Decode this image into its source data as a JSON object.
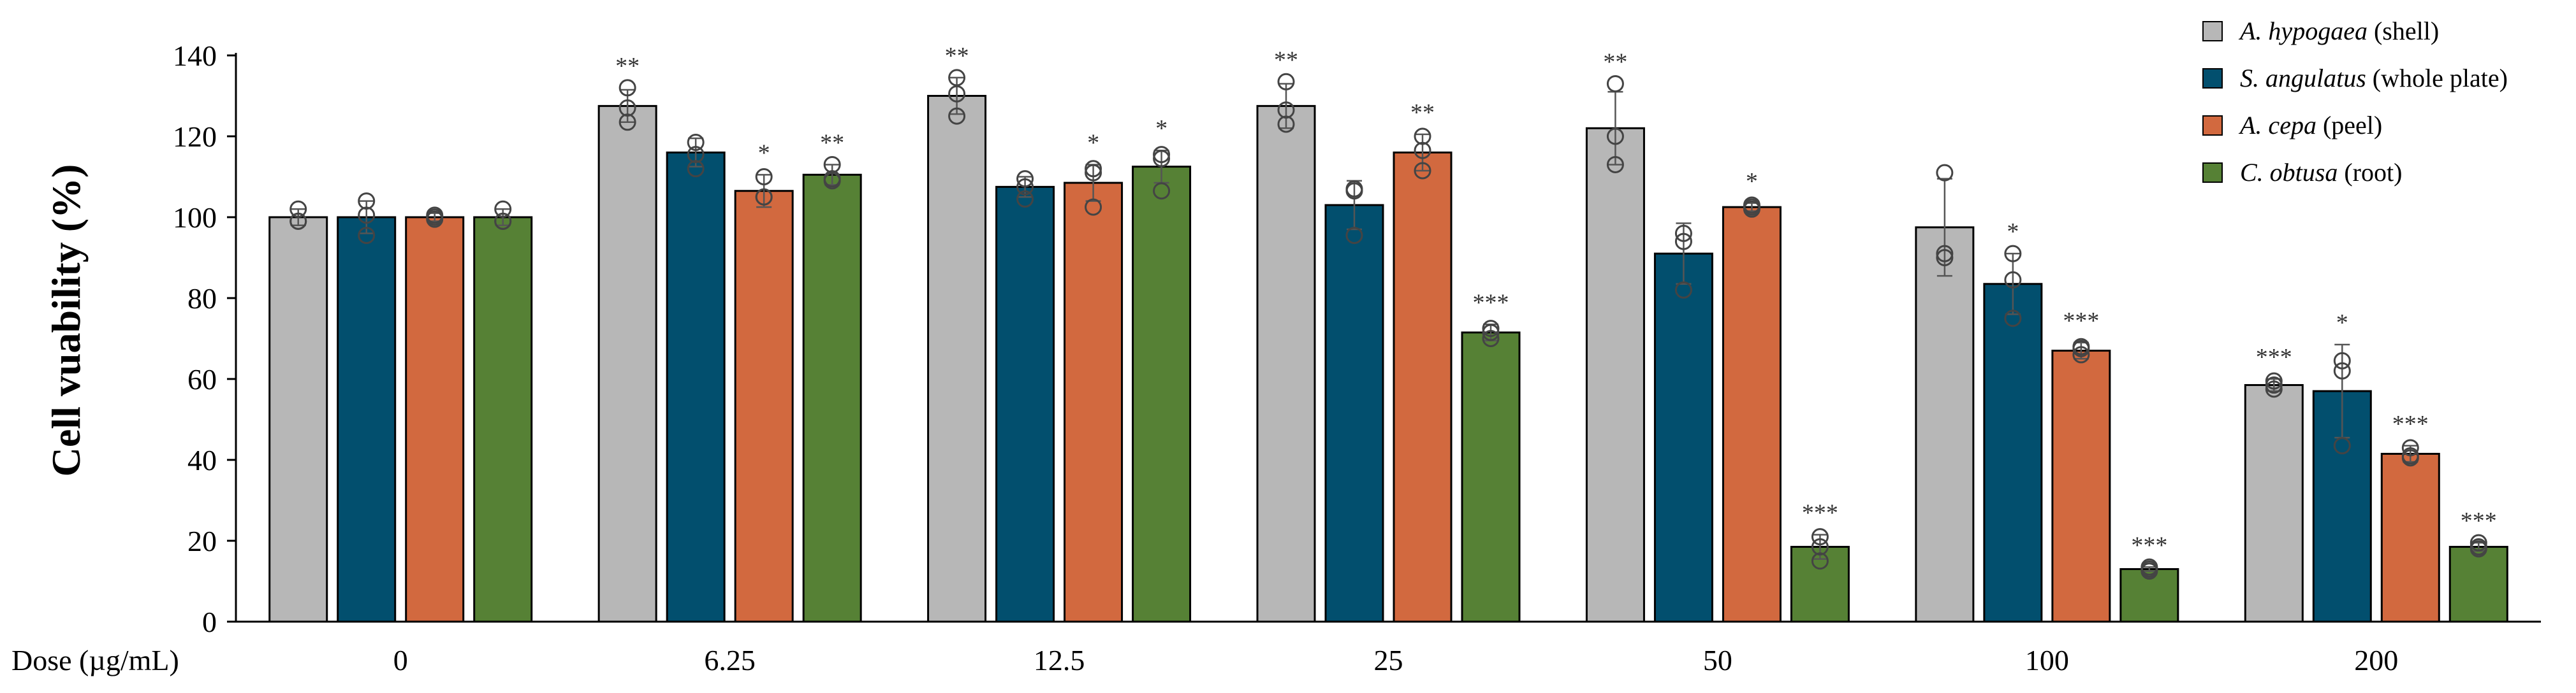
{
  "chart_data": {
    "type": "bar",
    "ylabel": "Cell vuability (%)",
    "xlabel": "Dose (µg/mL)",
    "ylim": [
      0,
      140
    ],
    "yticks": [
      0,
      20,
      40,
      60,
      80,
      100,
      120,
      140
    ],
    "grid": false,
    "legend_position": "top-right",
    "categories": [
      "0",
      "6.25",
      "12.5",
      "25",
      "50",
      "100",
      "200"
    ],
    "series": [
      {
        "name_italic": "A. hypogaea",
        "name_rest": " (shell)",
        "color": "#b7b7b7",
        "values": [
          100,
          127.5,
          130,
          127.5,
          122,
          97.5,
          58.5
        ],
        "errors": [
          2,
          4,
          4.5,
          5.5,
          9,
          12,
          1.5
        ],
        "significance": [
          "",
          "**",
          "**",
          "**",
          "**",
          "",
          "***"
        ],
        "points": [
          [
            102,
            99,
            99
          ],
          [
            132,
            123.5,
            127
          ],
          [
            134.5,
            125,
            130.5
          ],
          [
            133.5,
            123,
            126.5
          ],
          [
            133,
            113,
            120
          ],
          [
            111,
            90,
            91
          ],
          [
            59.5,
            57.5,
            58.5
          ]
        ]
      },
      {
        "name_italic": "S. angulatus",
        "name_rest": " (whole plate)",
        "color": "#024f6e",
        "values": [
          100,
          116,
          107.5,
          103,
          91,
          83.5,
          57
        ],
        "errors": [
          4,
          3.5,
          2.5,
          6,
          7.5,
          7.5,
          11.5
        ],
        "significance": [
          "",
          "",
          "",
          "",
          "",
          "*",
          "*"
        ],
        "points": [
          [
            104,
            95.5,
            100.5
          ],
          [
            118.5,
            112,
            115.5
          ],
          [
            109.5,
            104.5,
            107.5
          ],
          [
            106.5,
            95.5,
            107
          ],
          [
            96,
            82,
            94
          ],
          [
            91,
            75,
            84.5
          ],
          [
            64.5,
            43.5,
            62
          ]
        ]
      },
      {
        "name_italic": "A. cepa",
        "name_rest": " (peel)",
        "color": "#d2693f",
        "values": [
          100,
          106.5,
          108.5,
          116,
          102.5,
          67,
          41.5
        ],
        "errors": [
          1,
          4,
          4.5,
          4.5,
          1,
          2,
          2
        ],
        "significance": [
          "",
          "*",
          "*",
          "**",
          "*",
          "***",
          "***"
        ],
        "points": [
          [
            100,
            99.5,
            100.5
          ],
          [
            110,
            105,
            105
          ],
          [
            112,
            102.5,
            111
          ],
          [
            120,
            111.5,
            116.5
          ],
          [
            102.5,
            102,
            103
          ],
          [
            68,
            66,
            67.5
          ],
          [
            43,
            40.5,
            41
          ]
        ]
      },
      {
        "name_italic": "C. obtusa",
        "name_rest": " (root)",
        "color": "#568135",
        "values": [
          100,
          110.5,
          112.5,
          71.5,
          18.5,
          13,
          18.5
        ],
        "errors": [
          2,
          2.5,
          4,
          2,
          3,
          0.5,
          1
        ],
        "significance": [
          "",
          "**",
          "*",
          "***",
          "***",
          "***",
          "***"
        ],
        "points": [
          [
            102,
            99,
            99
          ],
          [
            113,
            109,
            109.5
          ],
          [
            115.5,
            106.5,
            114.5
          ],
          [
            72.5,
            70,
            71.5
          ],
          [
            21,
            15,
            18.5
          ],
          [
            13,
            12.5,
            13.5
          ],
          [
            19.5,
            18,
            18.5
          ]
        ]
      }
    ]
  }
}
